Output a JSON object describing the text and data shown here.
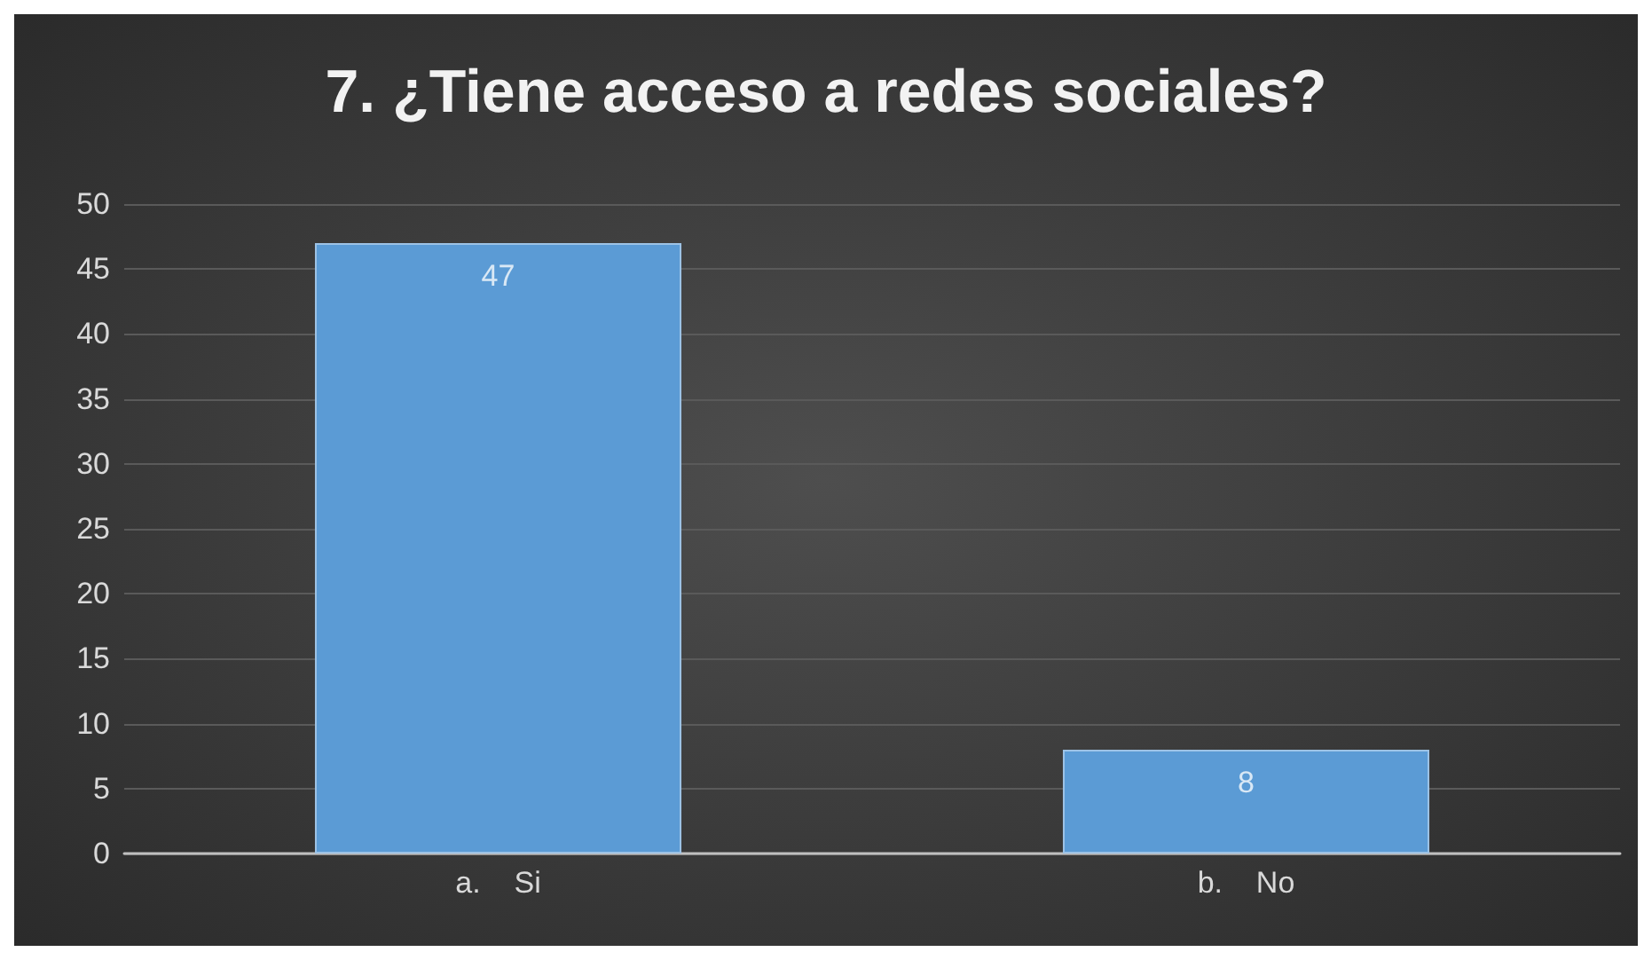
{
  "chart_data": {
    "type": "bar",
    "title": "7. ¿Tiene acceso a redes sociales?",
    "categories": [
      "a.    Si",
      "b.    No"
    ],
    "values": [
      47,
      8
    ],
    "color": "#5b9bd5",
    "ylim": [
      0,
      50
    ],
    "yticks": [
      0,
      5,
      10,
      15,
      20,
      25,
      30,
      35,
      40,
      45,
      50
    ],
    "grid": "y",
    "data_labels": true
  }
}
